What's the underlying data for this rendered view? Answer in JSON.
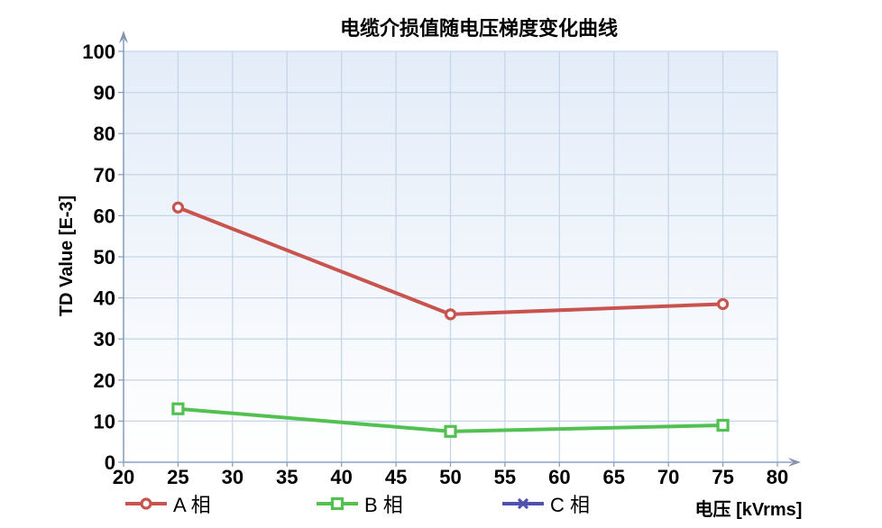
{
  "page": {
    "title": "电缆介损值随电压梯度变化曲线"
  },
  "chart_data": {
    "type": "line",
    "title": "电缆介损值随电压梯度变化曲线",
    "xlabel": "电压 [kVrms]",
    "ylabel": "TD Value [E-3]",
    "xlim": [
      20,
      80
    ],
    "ylim": [
      0,
      100
    ],
    "xticks": [
      20,
      25,
      30,
      35,
      40,
      45,
      50,
      55,
      60,
      65,
      70,
      75,
      80
    ],
    "yticks": [
      0,
      10,
      20,
      30,
      40,
      50,
      60,
      70,
      80,
      90,
      100
    ],
    "grid": true,
    "legend_position": "bottom",
    "series": [
      {
        "name": "A 相",
        "color": "#c9544f",
        "marker": "circle",
        "x": [
          25,
          50,
          75
        ],
        "y": [
          62,
          36,
          38.5
        ]
      },
      {
        "name": "B 相",
        "color": "#52c152",
        "marker": "square",
        "x": [
          25,
          50,
          75
        ],
        "y": [
          13,
          7.5,
          9
        ]
      },
      {
        "name": "C 相",
        "color": "#5050ae",
        "marker": "x",
        "x": [],
        "y": []
      }
    ]
  },
  "colors": {
    "grid_line": "#c6d6e9",
    "axis_line": "#8aa0c0",
    "arrow": "#8496ad",
    "plot_bg_top": "#e3ecf8",
    "plot_bg_bottom": "#ffffff",
    "tick_label": "#000000"
  }
}
